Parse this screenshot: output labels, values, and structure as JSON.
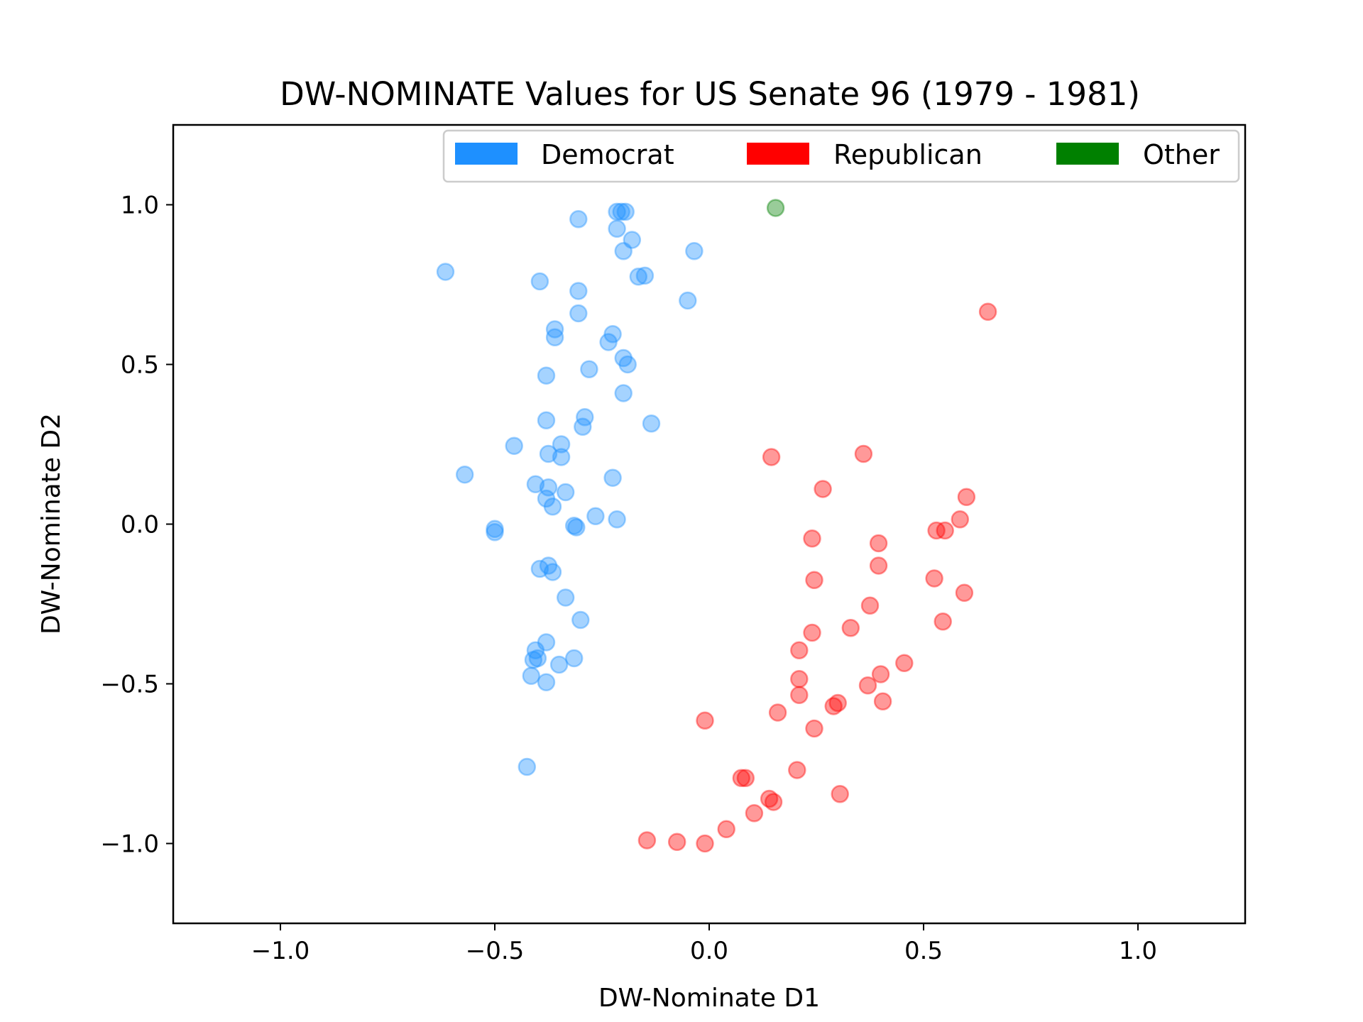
{
  "chart_data": {
    "type": "scatter",
    "title": "DW-NOMINATE Values for US Senate 96 (1979 - 1981)",
    "xlabel": "DW-Nominate D1",
    "ylabel": "DW-Nominate D2",
    "xlim": [
      -1.25,
      1.25
    ],
    "ylim": [
      -1.25,
      1.25
    ],
    "xticks": [
      -1.0,
      -0.5,
      0.0,
      0.5,
      1.0
    ],
    "xtick_labels": [
      "−1.0",
      "−0.5",
      "0.0",
      "0.5",
      "1.0"
    ],
    "yticks": [
      -1.0,
      -0.5,
      0.0,
      0.5,
      1.0
    ],
    "ytick_labels": [
      "−1.0",
      "−0.5",
      "0.0",
      "0.5",
      "1.0"
    ],
    "grid": false,
    "legend_position": "top-right",
    "series": [
      {
        "name": "Democrat",
        "color": "#1e90ff",
        "points": [
          [
            -0.305,
            0.955
          ],
          [
            -0.215,
            0.978
          ],
          [
            -0.205,
            0.978
          ],
          [
            -0.195,
            0.978
          ],
          [
            -0.215,
            0.925
          ],
          [
            -0.18,
            0.89
          ],
          [
            -0.2,
            0.855
          ],
          [
            -0.035,
            0.855
          ],
          [
            -0.615,
            0.79
          ],
          [
            -0.395,
            0.76
          ],
          [
            -0.165,
            0.775
          ],
          [
            -0.15,
            0.778
          ],
          [
            -0.305,
            0.73
          ],
          [
            -0.05,
            0.7
          ],
          [
            -0.305,
            0.66
          ],
          [
            -0.36,
            0.61
          ],
          [
            -0.36,
            0.585
          ],
          [
            -0.225,
            0.595
          ],
          [
            -0.235,
            0.57
          ],
          [
            -0.2,
            0.52
          ],
          [
            -0.19,
            0.5
          ],
          [
            -0.28,
            0.485
          ],
          [
            -0.38,
            0.465
          ],
          [
            -0.2,
            0.41
          ],
          [
            -0.38,
            0.325
          ],
          [
            -0.29,
            0.335
          ],
          [
            -0.295,
            0.305
          ],
          [
            -0.135,
            0.315
          ],
          [
            -0.455,
            0.245
          ],
          [
            -0.345,
            0.25
          ],
          [
            -0.375,
            0.22
          ],
          [
            -0.345,
            0.21
          ],
          [
            -0.57,
            0.155
          ],
          [
            -0.225,
            0.145
          ],
          [
            -0.405,
            0.125
          ],
          [
            -0.375,
            0.115
          ],
          [
            -0.335,
            0.1
          ],
          [
            -0.38,
            0.08
          ],
          [
            -0.365,
            0.055
          ],
          [
            -0.265,
            0.025
          ],
          [
            -0.215,
            0.015
          ],
          [
            -0.315,
            -0.005
          ],
          [
            -0.31,
            -0.01
          ],
          [
            -0.5,
            -0.015
          ],
          [
            -0.5,
            -0.025
          ],
          [
            -0.395,
            -0.14
          ],
          [
            -0.375,
            -0.13
          ],
          [
            -0.365,
            -0.15
          ],
          [
            -0.335,
            -0.23
          ],
          [
            -0.3,
            -0.3
          ],
          [
            -0.38,
            -0.37
          ],
          [
            -0.405,
            -0.395
          ],
          [
            -0.4,
            -0.42
          ],
          [
            -0.41,
            -0.425
          ],
          [
            -0.35,
            -0.44
          ],
          [
            -0.315,
            -0.42
          ],
          [
            -0.415,
            -0.475
          ],
          [
            -0.38,
            -0.495
          ],
          [
            -0.425,
            -0.76
          ]
        ]
      },
      {
        "name": "Republican",
        "color": "#ff0000",
        "points": [
          [
            0.65,
            0.665
          ],
          [
            0.145,
            0.21
          ],
          [
            0.36,
            0.22
          ],
          [
            0.265,
            0.11
          ],
          [
            0.6,
            0.085
          ],
          [
            0.585,
            0.015
          ],
          [
            0.53,
            -0.02
          ],
          [
            0.55,
            -0.02
          ],
          [
            0.24,
            -0.045
          ],
          [
            0.395,
            -0.06
          ],
          [
            0.395,
            -0.13
          ],
          [
            0.525,
            -0.17
          ],
          [
            0.595,
            -0.215
          ],
          [
            0.245,
            -0.175
          ],
          [
            0.375,
            -0.255
          ],
          [
            0.545,
            -0.305
          ],
          [
            0.33,
            -0.325
          ],
          [
            0.24,
            -0.34
          ],
          [
            0.21,
            -0.395
          ],
          [
            0.455,
            -0.435
          ],
          [
            0.4,
            -0.47
          ],
          [
            0.37,
            -0.505
          ],
          [
            0.21,
            -0.485
          ],
          [
            0.21,
            -0.535
          ],
          [
            0.3,
            -0.56
          ],
          [
            0.29,
            -0.57
          ],
          [
            0.405,
            -0.555
          ],
          [
            0.16,
            -0.59
          ],
          [
            -0.01,
            -0.615
          ],
          [
            0.245,
            -0.64
          ],
          [
            0.205,
            -0.77
          ],
          [
            0.075,
            -0.795
          ],
          [
            0.085,
            -0.795
          ],
          [
            0.305,
            -0.845
          ],
          [
            0.14,
            -0.86
          ],
          [
            0.15,
            -0.87
          ],
          [
            0.105,
            -0.905
          ],
          [
            0.04,
            -0.955
          ],
          [
            -0.145,
            -0.99
          ],
          [
            -0.075,
            -0.995
          ],
          [
            -0.01,
            -1.0
          ]
        ]
      },
      {
        "name": "Other",
        "color": "#008000",
        "points": [
          [
            0.155,
            0.99
          ]
        ]
      }
    ]
  }
}
